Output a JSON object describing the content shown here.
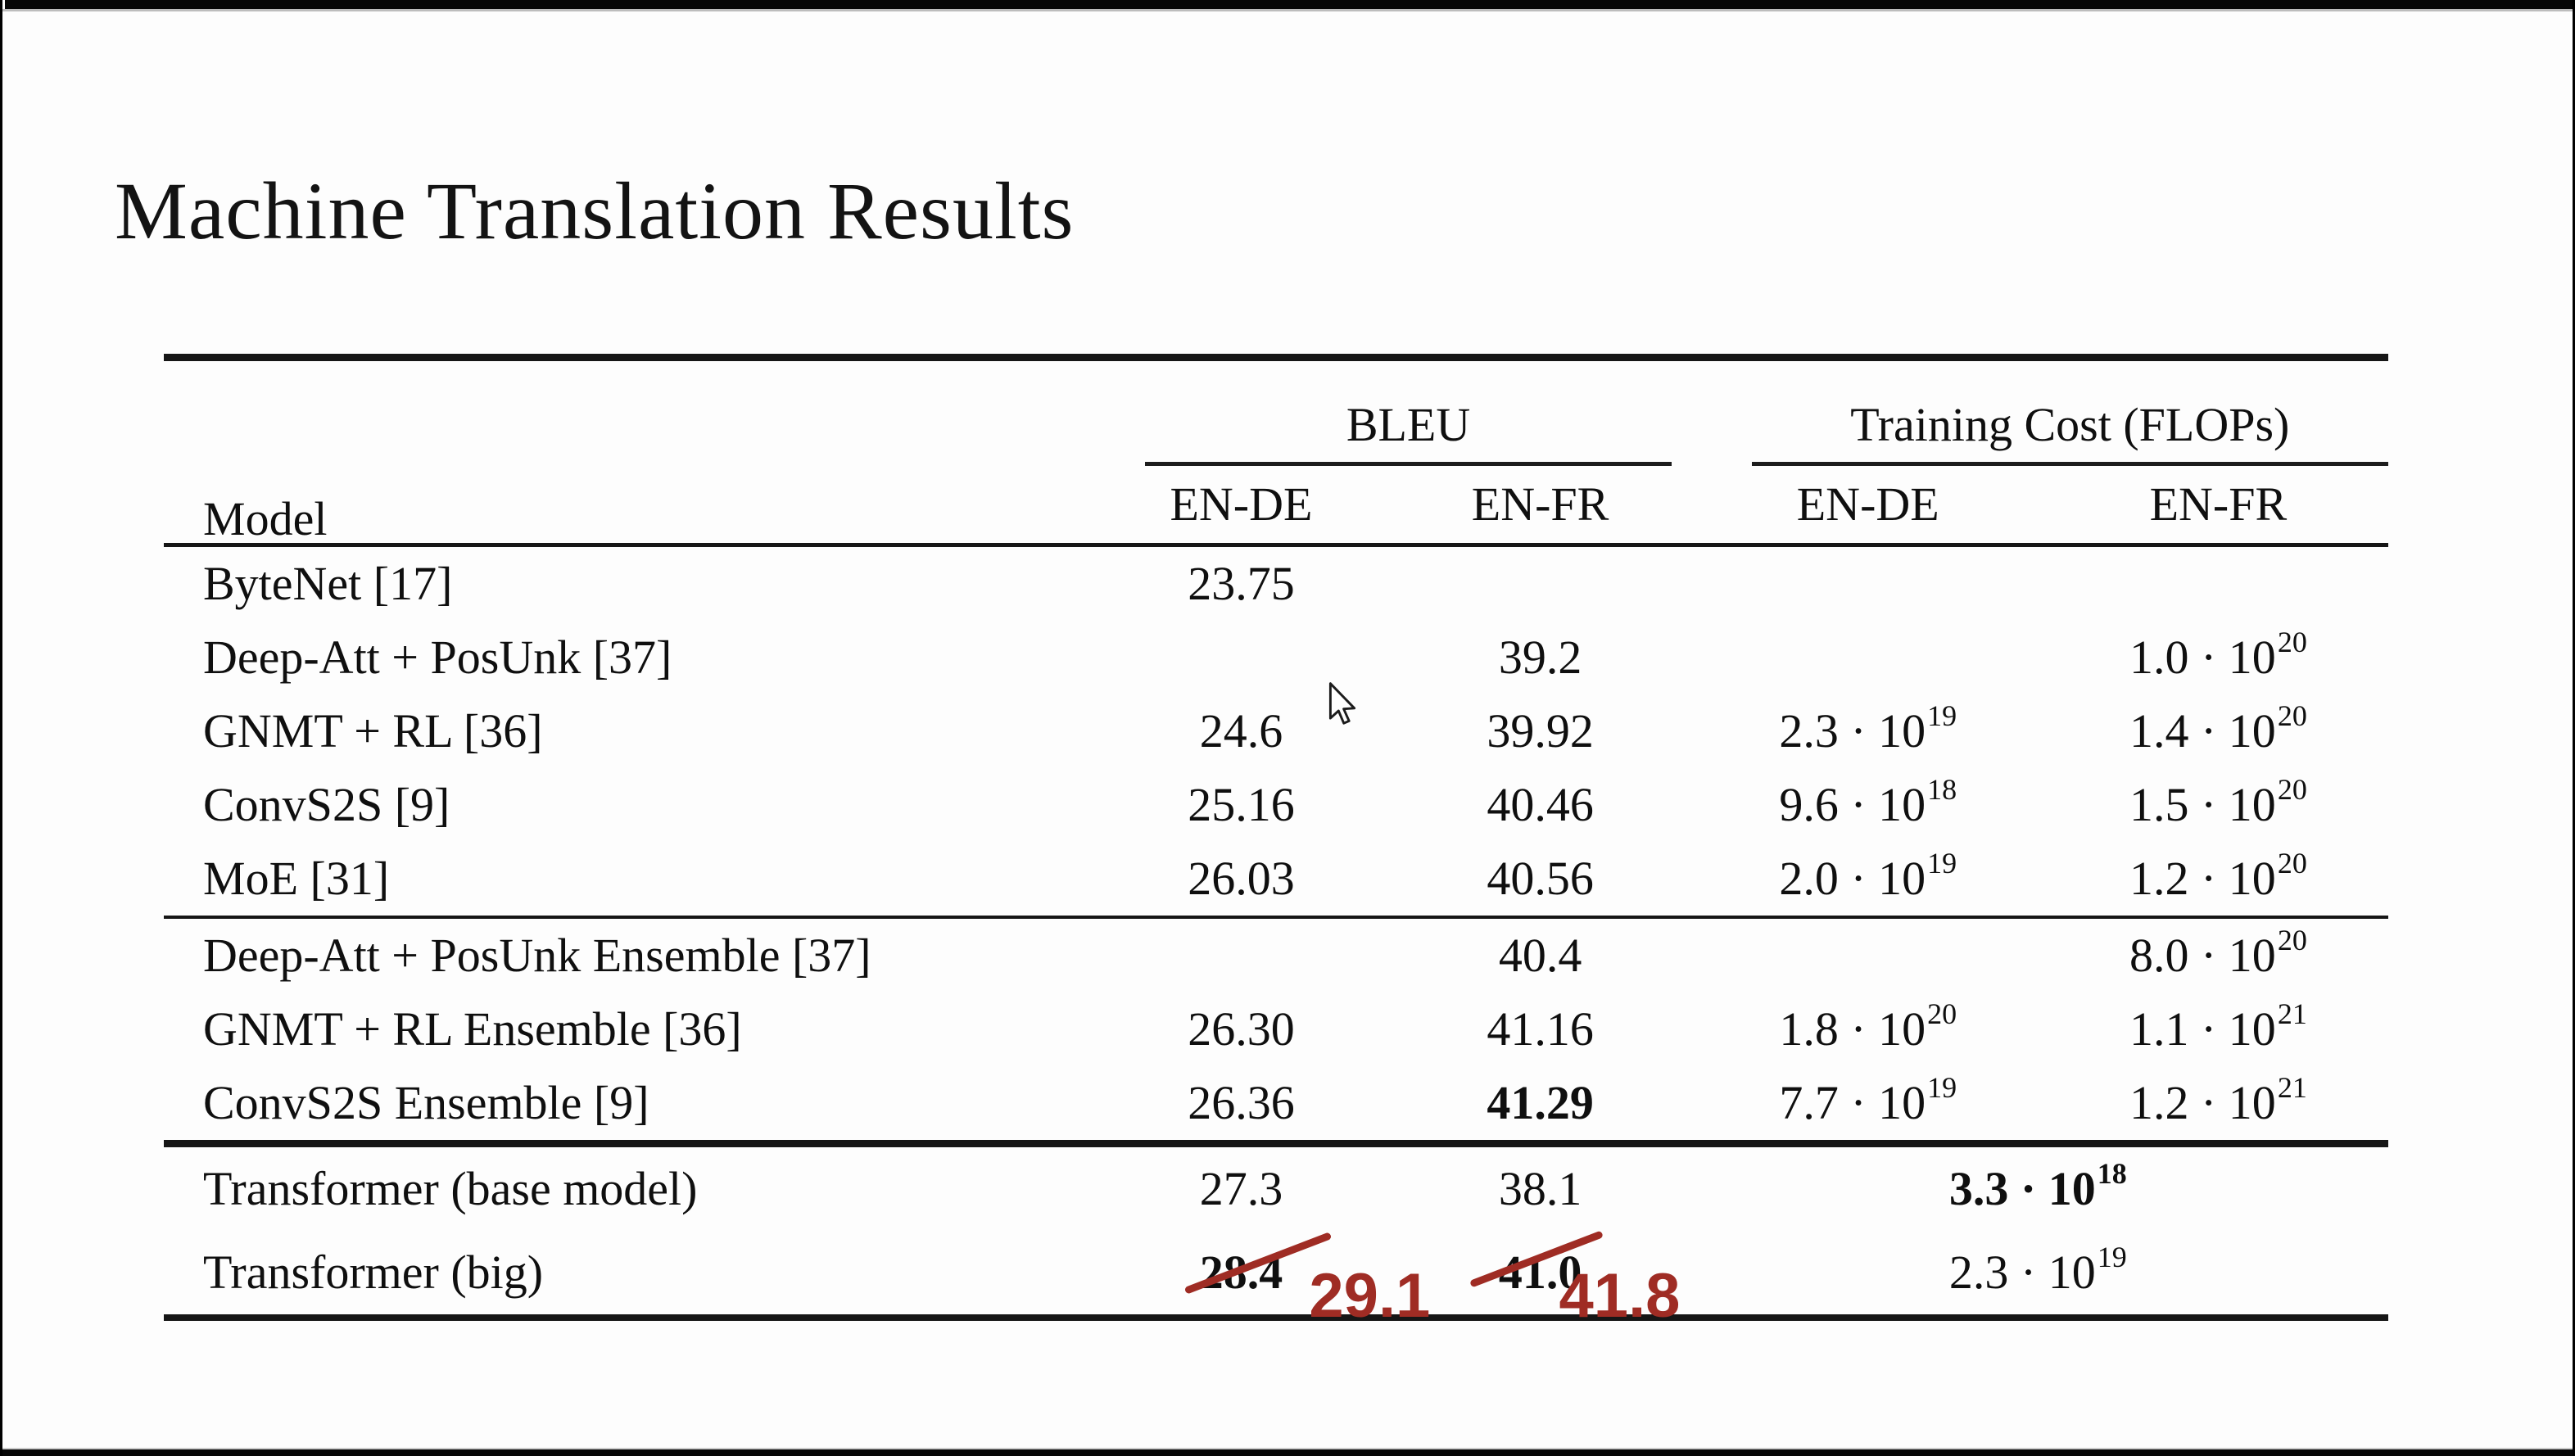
{
  "title": "Machine Translation Results",
  "table": {
    "headers": {
      "model": "Model",
      "bleu": "BLEU",
      "cost": "Training Cost (FLOPs)",
      "sub": [
        "EN-DE",
        "EN-FR",
        "EN-DE",
        "EN-FR"
      ]
    },
    "groups": [
      {
        "rows": [
          {
            "model": "ByteNet [17]",
            "bleu_en_de": "23.75",
            "bleu_en_fr": "",
            "cost_en_de": null,
            "cost_en_fr": null
          },
          {
            "model": "Deep-Att + PosUnk [37]",
            "bleu_en_de": "",
            "bleu_en_fr": "39.2",
            "cost_en_de": null,
            "cost_en_fr": {
              "m": "1.0 · 10",
              "e": "20"
            }
          },
          {
            "model": "GNMT + RL [36]",
            "bleu_en_de": "24.6",
            "bleu_en_fr": "39.92",
            "cost_en_de": {
              "m": "2.3 · 10",
              "e": "19"
            },
            "cost_en_fr": {
              "m": "1.4 · 10",
              "e": "20"
            }
          },
          {
            "model": "ConvS2S [9]",
            "bleu_en_de": "25.16",
            "bleu_en_fr": "40.46",
            "cost_en_de": {
              "m": "9.6 · 10",
              "e": "18"
            },
            "cost_en_fr": {
              "m": "1.5 · 10",
              "e": "20"
            }
          },
          {
            "model": "MoE [31]",
            "bleu_en_de": "26.03",
            "bleu_en_fr": "40.56",
            "cost_en_de": {
              "m": "2.0 · 10",
              "e": "19"
            },
            "cost_en_fr": {
              "m": "1.2 · 10",
              "e": "20"
            }
          }
        ]
      },
      {
        "rows": [
          {
            "model": "Deep-Att + PosUnk Ensemble [37]",
            "bleu_en_de": "",
            "bleu_en_fr": "40.4",
            "cost_en_de": null,
            "cost_en_fr": {
              "m": "8.0 · 10",
              "e": "20"
            }
          },
          {
            "model": "GNMT + RL Ensemble [36]",
            "bleu_en_de": "26.30",
            "bleu_en_fr": "41.16",
            "cost_en_de": {
              "m": "1.8 · 10",
              "e": "20"
            },
            "cost_en_fr": {
              "m": "1.1 · 10",
              "e": "21"
            }
          },
          {
            "model": "ConvS2S Ensemble [9]",
            "bleu_en_de": "26.36",
            "bleu_en_fr": {
              "value": "41.29",
              "bold": true
            },
            "cost_en_de": {
              "m": "7.7 · 10",
              "e": "19"
            },
            "cost_en_fr": {
              "m": "1.2 · 10",
              "e": "21"
            }
          }
        ]
      },
      {
        "rows": [
          {
            "model": "Transformer (base model)",
            "bleu_en_de": "27.3",
            "bleu_en_fr": "38.1",
            "cost_span": {
              "m": "3.3 · 10",
              "e": "18",
              "bold": true
            }
          },
          {
            "model": "Transformer (big)",
            "bleu_en_de": {
              "value": "28.4",
              "bold": true,
              "struck": true,
              "correction": "29.1"
            },
            "bleu_en_fr": {
              "value": "41.0",
              "bold": true,
              "struck": true,
              "correction": "41.8"
            },
            "cost_span": {
              "m": "2.3 · 10",
              "e": "19",
              "bold": false
            }
          }
        ]
      }
    ]
  },
  "annotations": {
    "strike_color": "#9f2c24",
    "corrections": [
      "29.1",
      "41.8"
    ]
  }
}
